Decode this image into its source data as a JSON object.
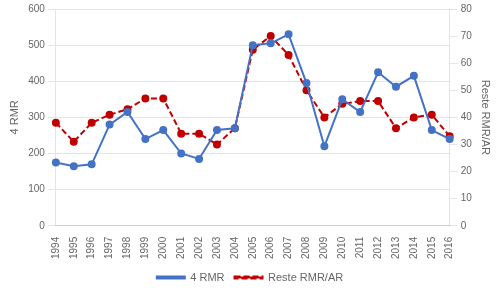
{
  "chart_data": {
    "type": "line",
    "categories": [
      "1994",
      "1995",
      "1996",
      "1997",
      "1998",
      "1999",
      "2000",
      "2001",
      "2002",
      "2003",
      "2004",
      "2005",
      "2006",
      "2007",
      "2008",
      "2009",
      "2010",
      "2011",
      "2012",
      "2013",
      "2014",
      "2015",
      "2016"
    ],
    "series": [
      {
        "name": "4 RMR",
        "color": "#4472C4",
        "marker": "circle",
        "line_style": "solid",
        "values": [
          175,
          165,
          170,
          280,
          315,
          240,
          265,
          200,
          185,
          265,
          270,
          500,
          505,
          530,
          395,
          220,
          350,
          315,
          425,
          385,
          415,
          265,
          240
        ]
      },
      {
        "name": "Reste RMR/AR",
        "color": "#C00000",
        "marker": "circle",
        "line_style": "dashed",
        "axis": "y2",
        "values": [
          38,
          31,
          38,
          41,
          43,
          47,
          47,
          34,
          34,
          30,
          36,
          65,
          70,
          63,
          50,
          40,
          45,
          46,
          46,
          36,
          40,
          41,
          33
        ]
      }
    ],
    "ylabel": "4 RMR",
    "y2label": "Reste RMR/AR",
    "ylim": [
      0,
      600
    ],
    "yticks": [
      0,
      100,
      200,
      300,
      400,
      500,
      600
    ],
    "y2lim": [
      0,
      80
    ],
    "y2ticks": [
      0,
      10,
      20,
      30,
      40,
      50,
      60,
      70,
      80
    ],
    "grid": "y",
    "legend": "bottom"
  }
}
